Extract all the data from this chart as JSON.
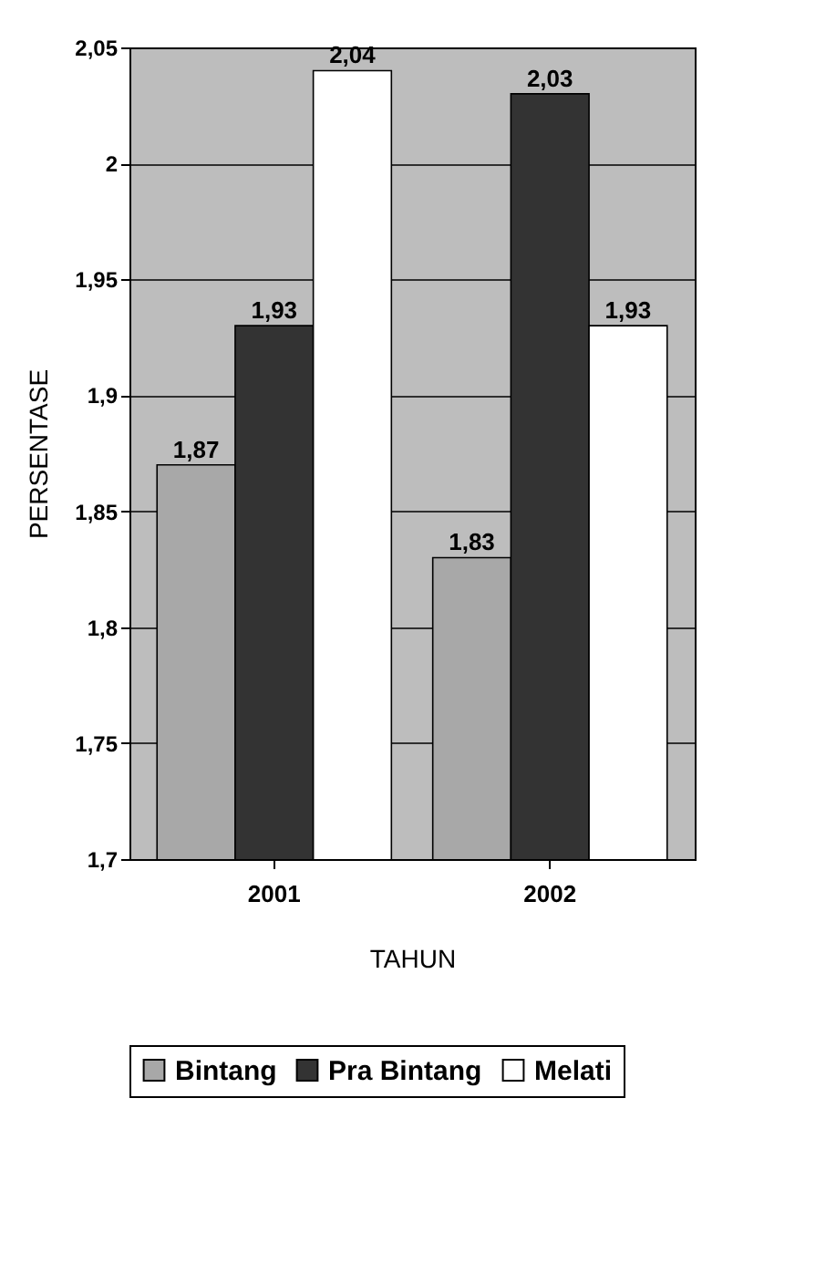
{
  "chart_data": {
    "type": "bar",
    "xlabel": "TAHUN",
    "ylabel": "PERSENTASE",
    "categories": [
      "2001",
      "2002"
    ],
    "series": [
      {
        "name": "Bintang",
        "color": "#a8a8a8",
        "values": [
          1.87,
          1.83
        ],
        "value_labels": [
          "1,87",
          "1,83"
        ]
      },
      {
        "name": "Pra Bintang",
        "color": "#333333",
        "values": [
          1.93,
          2.03
        ],
        "value_labels": [
          "1,93",
          "2,03"
        ]
      },
      {
        "name": "Melati",
        "color": "#ffffff",
        "values": [
          2.04,
          1.93
        ],
        "value_labels": [
          "2,04",
          "1,93"
        ]
      }
    ],
    "ylim": [
      1.7,
      2.05
    ],
    "yticks": [
      {
        "value": 1.7,
        "label": "1,7"
      },
      {
        "value": 1.75,
        "label": "1,75"
      },
      {
        "value": 1.8,
        "label": "1,8"
      },
      {
        "value": 1.85,
        "label": "1,85"
      },
      {
        "value": 1.9,
        "label": "1,9"
      },
      {
        "value": 1.95,
        "label": "1,95"
      },
      2,
      {
        "value": 2.05,
        "label": "2,05"
      }
    ],
    "grid": "y",
    "legend": "bottom"
  }
}
